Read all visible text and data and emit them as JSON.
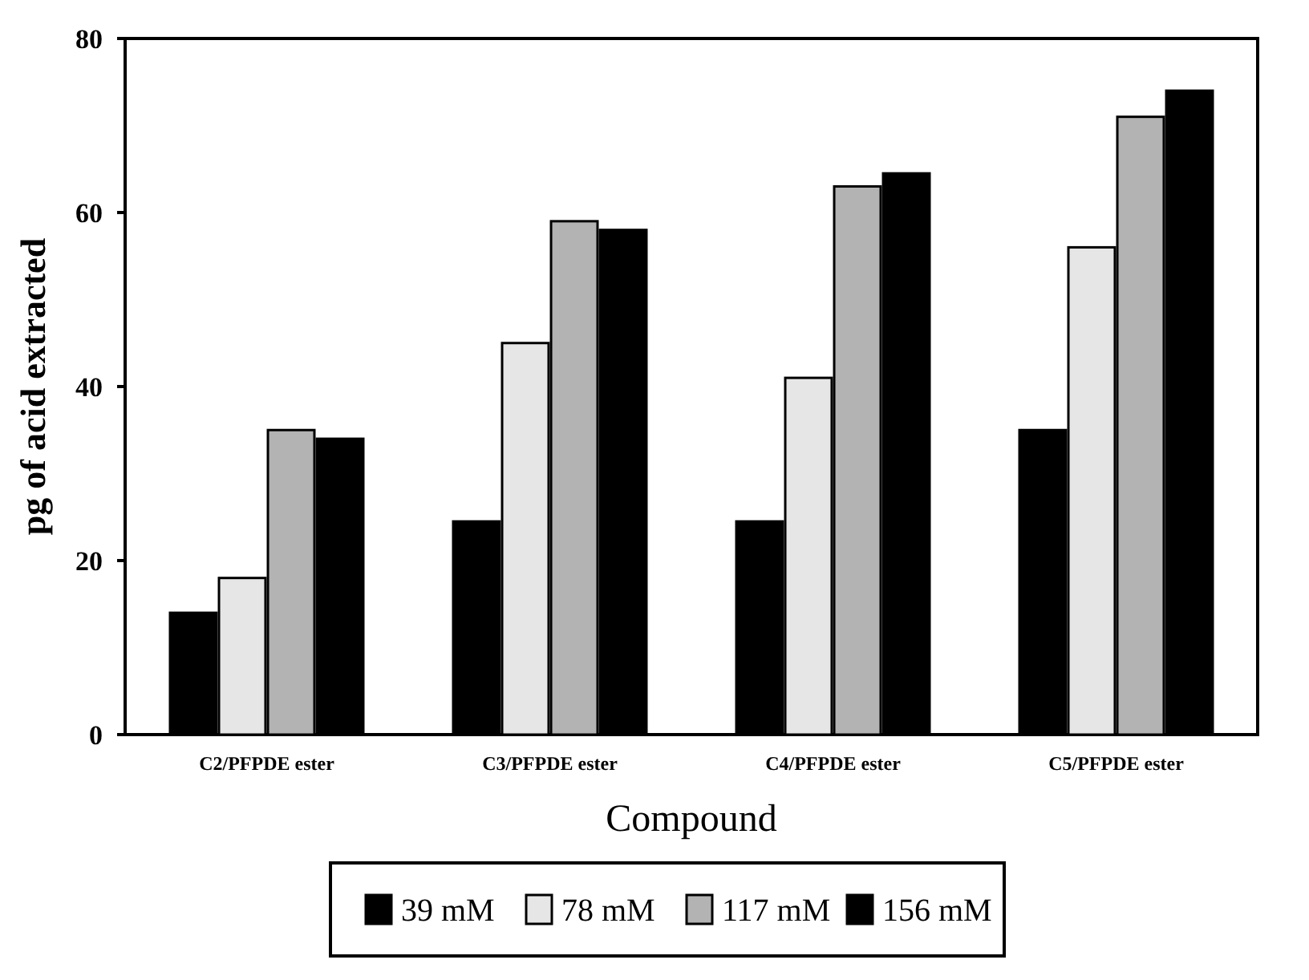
{
  "chart_data": {
    "type": "bar",
    "xlabel": "Compound",
    "ylabel": "pg of acid extracted",
    "categories": [
      "C2/PFPDE ester",
      "C3/PFPDE ester",
      "C4/PFPDE ester",
      "C5/PFPDE ester"
    ],
    "series": [
      {
        "name": "39 mM",
        "color": "#000000",
        "values": [
          14,
          24.5,
          24.5,
          35
        ]
      },
      {
        "name": "78 mM",
        "color": "#e6e6e6",
        "values": [
          18,
          45,
          41,
          56
        ]
      },
      {
        "name": "117 mM",
        "color": "#b3b3b3",
        "values": [
          35,
          59,
          63,
          71
        ]
      },
      {
        "name": "156 mM",
        "color": "#000000",
        "values": [
          34,
          58,
          64.5,
          74
        ]
      }
    ],
    "ylim": [
      0,
      80
    ],
    "yticks": [
      0,
      20,
      40,
      60,
      80
    ],
    "legend": "bottom"
  }
}
